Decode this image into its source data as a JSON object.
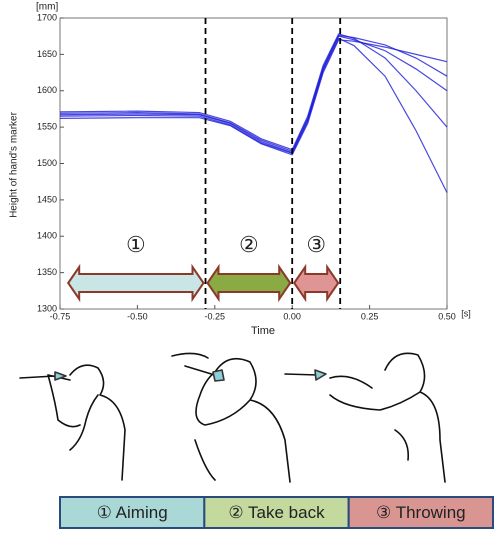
{
  "chart_data": {
    "type": "line",
    "y_unit": "[mm]",
    "x_unit": "[s]",
    "ylabel": "Height of hand's marker",
    "xlabel": "Time",
    "xlim": [
      -0.75,
      0.5
    ],
    "ylim": [
      1300,
      1700
    ],
    "xticks": [
      {
        "value": -0.75,
        "label": "-0.75"
      },
      {
        "value": -0.5,
        "label": "-0.50"
      },
      {
        "value": -0.25,
        "label": "-0.25"
      },
      {
        "value": 0,
        "label": "0.00"
      },
      {
        "value": 0.25,
        "label": "0.25"
      },
      {
        "value": 0.5,
        "label": "0.50"
      }
    ],
    "yticks": [
      1300,
      1350,
      1400,
      1450,
      1500,
      1550,
      1600,
      1650,
      1700
    ],
    "x": [
      -0.75,
      -0.5,
      -0.3,
      -0.2,
      -0.1,
      0,
      0.05,
      0.1,
      0.15,
      0.2,
      0.3,
      0.4,
      0.5
    ],
    "series": [
      {
        "color": "#1a1ad8",
        "values": [
          1567,
          1568,
          1567,
          1555,
          1530,
          1515,
          1560,
          1630,
          1675,
          1670,
          1655,
          1630,
          1600
        ]
      },
      {
        "color": "#1a1ad8",
        "values": [
          1562,
          1563,
          1563,
          1552,
          1527,
          1512,
          1555,
          1625,
          1670,
          1668,
          1660,
          1650,
          1640
        ]
      },
      {
        "color": "#1a1ad8",
        "values": [
          1571,
          1572,
          1570,
          1558,
          1534,
          1519,
          1565,
          1635,
          1678,
          1672,
          1645,
          1600,
          1550
        ]
      },
      {
        "color": "#1a1ad8",
        "values": [
          1565,
          1566,
          1565,
          1553,
          1528,
          1514,
          1558,
          1628,
          1672,
          1662,
          1620,
          1545,
          1460
        ]
      },
      {
        "color": "#1a1ad8",
        "values": [
          1569,
          1570,
          1568,
          1556,
          1532,
          1517,
          1562,
          1632,
          1676,
          1673,
          1663,
          1645,
          1620
        ]
      }
    ],
    "markers": [
      -0.28,
      0,
      0.155
    ],
    "phases": [
      {
        "label": "①",
        "name": "① Aiming",
        "start": -0.73,
        "end": -0.28,
        "color": "#c9e5e5",
        "legend_color": "#a9d8d6"
      },
      {
        "label": "②",
        "name": "② Take back",
        "start": -0.28,
        "end": 0,
        "color": "#8aab43",
        "legend_color": "#c3d99d"
      },
      {
        "label": "③",
        "name": "③ Throwing",
        "start": 0,
        "end": 0.155,
        "color": "#e09595",
        "legend_color": "#d99592"
      }
    ]
  }
}
